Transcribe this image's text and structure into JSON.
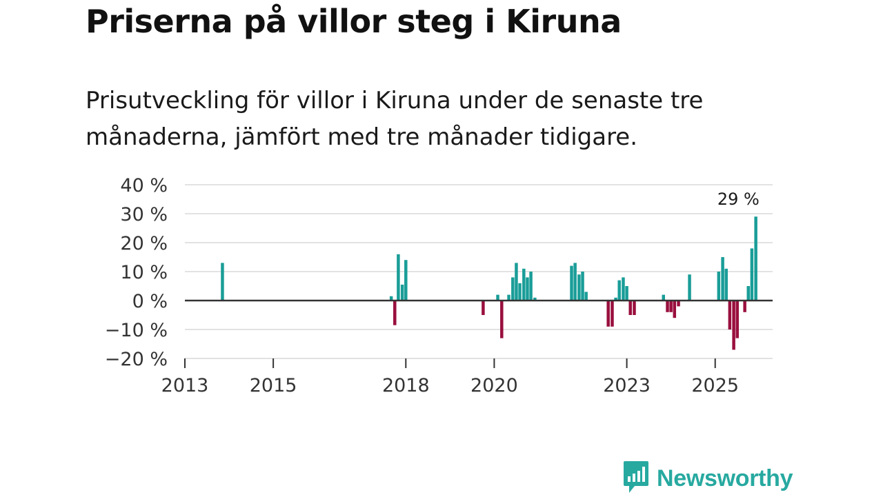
{
  "title": "Priserna på villor steg i Kiruna",
  "subtitle": "Prisutveckling för villor i Kiruna under de senaste tre månaderna, jämfört med tre månader tidigare.",
  "brand": {
    "name": "Newsworthy",
    "color": "#27a9a0"
  },
  "colors": {
    "positive": "#1a9d98",
    "negative": "#990f3d",
    "grid": "#d9d9d9",
    "zero": "#333333"
  },
  "chart_data": {
    "type": "bar",
    "title": "Priserna på villor steg i Kiruna",
    "ylabel": "",
    "xlabel": "",
    "ylim": [
      -20,
      40
    ],
    "xlim": [
      2013.0,
      2026.3
    ],
    "yticks": [
      40,
      30,
      20,
      10,
      0,
      -10,
      -20
    ],
    "ytick_labels": [
      "40 %",
      "30 %",
      "20 %",
      "10 %",
      "0 %",
      "−10 %",
      "−20 %"
    ],
    "xticks": [
      2013,
      2015,
      2018,
      2020,
      2023,
      2025
    ],
    "xtick_labels": [
      "2013",
      "2015",
      "2018",
      "2020",
      "2023",
      "2025"
    ],
    "annotation": {
      "text": "29 %",
      "x": 2026.15,
      "y": 29
    },
    "series": [
      {
        "name": "Prisutveckling",
        "points": [
          {
            "x": 2013.85,
            "y": 13
          },
          {
            "x": 2017.67,
            "y": 1.5
          },
          {
            "x": 2017.75,
            "y": -8.5
          },
          {
            "x": 2017.83,
            "y": 16
          },
          {
            "x": 2017.92,
            "y": 5.5
          },
          {
            "x": 2018.0,
            "y": 14
          },
          {
            "x": 2019.75,
            "y": -5
          },
          {
            "x": 2020.08,
            "y": 2
          },
          {
            "x": 2020.17,
            "y": -13
          },
          {
            "x": 2020.33,
            "y": 2
          },
          {
            "x": 2020.42,
            "y": 8
          },
          {
            "x": 2020.5,
            "y": 13
          },
          {
            "x": 2020.58,
            "y": 6
          },
          {
            "x": 2020.67,
            "y": 11
          },
          {
            "x": 2020.75,
            "y": 8
          },
          {
            "x": 2020.83,
            "y": 10
          },
          {
            "x": 2020.92,
            "y": 1
          },
          {
            "x": 2021.75,
            "y": 12
          },
          {
            "x": 2021.83,
            "y": 13
          },
          {
            "x": 2021.92,
            "y": 9
          },
          {
            "x": 2022.0,
            "y": 10
          },
          {
            "x": 2022.08,
            "y": 3
          },
          {
            "x": 2022.58,
            "y": -9
          },
          {
            "x": 2022.67,
            "y": -9
          },
          {
            "x": 2022.75,
            "y": 1
          },
          {
            "x": 2022.83,
            "y": 7
          },
          {
            "x": 2022.92,
            "y": 8
          },
          {
            "x": 2023.0,
            "y": 5
          },
          {
            "x": 2023.08,
            "y": -5
          },
          {
            "x": 2023.17,
            "y": -5
          },
          {
            "x": 2023.83,
            "y": 2
          },
          {
            "x": 2023.92,
            "y": -4
          },
          {
            "x": 2024.0,
            "y": -4
          },
          {
            "x": 2024.08,
            "y": -6
          },
          {
            "x": 2024.17,
            "y": -2
          },
          {
            "x": 2024.42,
            "y": 9
          },
          {
            "x": 2025.08,
            "y": 10
          },
          {
            "x": 2025.17,
            "y": 15
          },
          {
            "x": 2025.25,
            "y": 11
          },
          {
            "x": 2025.33,
            "y": -10
          },
          {
            "x": 2025.42,
            "y": -17
          },
          {
            "x": 2025.5,
            "y": -13
          },
          {
            "x": 2025.67,
            "y": -4
          },
          {
            "x": 2025.75,
            "y": 5
          },
          {
            "x": 2025.83,
            "y": 18
          },
          {
            "x": 2025.92,
            "y": 29
          }
        ]
      }
    ]
  }
}
